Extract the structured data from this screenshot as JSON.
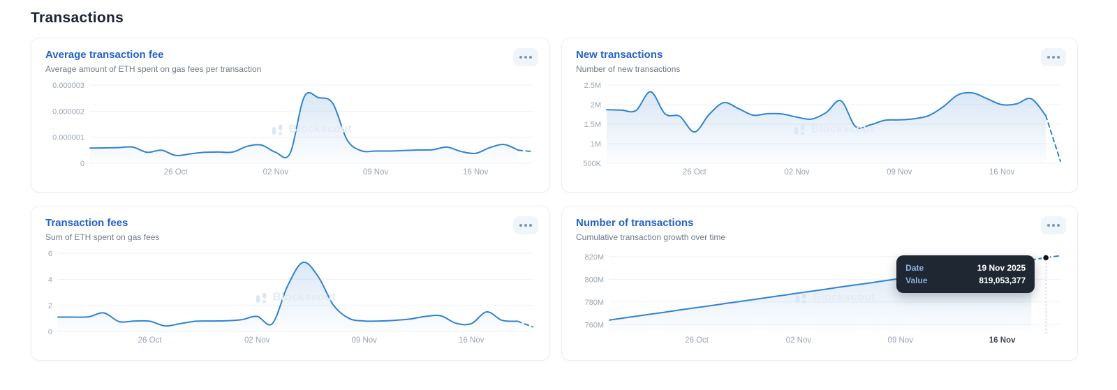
{
  "page": {
    "title": "Transactions"
  },
  "watermark": {
    "text": "Blockscout"
  },
  "colors": {
    "accent": "#2463c8",
    "line": "#2f82d0",
    "fill": "#93bbe5",
    "grid": "#eef1f6",
    "axis_text": "#9aa5b3",
    "axis_text_active": "#3f4a59",
    "crosshair": "#b6c6da",
    "marker": "#111418",
    "tooltip_bg": "#1f2733",
    "watermark_color": "#e4ebf4",
    "heading": "#1b2434"
  },
  "chart_data": [
    {
      "type": "area",
      "title": "Average transaction fee",
      "subtitle": "Average amount of ETH spent on gas fees per transaction",
      "unit": "ETH",
      "values": [
        5.8e-07,
        5.9e-07,
        6e-07,
        6.2e-07,
        4.2e-07,
        5e-07,
        3e-07,
        3.6e-07,
        4.2e-07,
        4.3e-07,
        4.3e-07,
        6.5e-07,
        7e-07,
        4.2e-07,
        3.7e-07,
        2.55e-06,
        2.52e-06,
        2.3e-06,
        9e-07,
        4.8e-07,
        4.7e-07,
        4.7e-07,
        4.9e-07,
        5.1e-07,
        5.2e-07,
        6.2e-07,
        4.5e-07,
        3.8e-07,
        6e-07,
        7.2e-07,
        5e-07,
        4.5e-07
      ],
      "dash_from": 30,
      "ymin": 0,
      "ymax": 3e-06,
      "yticks": [
        {
          "label": "0.000003",
          "v": 3e-06
        },
        {
          "label": "0.000002",
          "v": 2e-06
        },
        {
          "label": "0.000001",
          "v": 1e-06
        },
        {
          "label": "0",
          "v": 0
        }
      ],
      "xticks": [
        {
          "label": "26 Oct",
          "i": 6
        },
        {
          "label": "02 Nov",
          "i": 13
        },
        {
          "label": "09 Nov",
          "i": 20
        },
        {
          "label": "16 Nov",
          "i": 27
        }
      ],
      "ylabel_width": 64
    },
    {
      "type": "area",
      "title": "New transactions",
      "subtitle": "Number of new transactions",
      "unit": "transactions (millions)",
      "values": [
        1.87,
        1.86,
        1.85,
        2.33,
        1.76,
        1.7,
        1.3,
        1.75,
        2.05,
        1.9,
        1.73,
        1.77,
        1.76,
        1.68,
        1.63,
        1.8,
        2.1,
        1.44,
        1.48,
        1.6,
        1.61,
        1.64,
        1.72,
        1.95,
        2.25,
        2.3,
        2.15,
        2.0,
        2.02,
        2.15,
        1.72,
        0.55
      ],
      "dash_from": 30,
      "ymin": 0.5,
      "ymax": 2.5,
      "yticks": [
        {
          "label": "2.5M",
          "v": 2.5
        },
        {
          "label": "2M",
          "v": 2
        },
        {
          "label": "1.5M",
          "v": 1.5
        },
        {
          "label": "1M",
          "v": 1
        },
        {
          "label": "500K",
          "v": 0.5
        }
      ],
      "xticks": [
        {
          "label": "26 Oct",
          "i": 6
        },
        {
          "label": "02 Nov",
          "i": 13
        },
        {
          "label": "09 Nov",
          "i": 20
        },
        {
          "label": "16 Nov",
          "i": 27
        }
      ],
      "ylabel_width": 44
    },
    {
      "type": "area",
      "title": "Transaction fees",
      "subtitle": "Sum of ETH spent on gas fees",
      "unit": "ETH",
      "values": [
        1.1,
        1.1,
        1.12,
        1.42,
        0.75,
        0.8,
        0.78,
        0.42,
        0.6,
        0.78,
        0.8,
        0.82,
        0.9,
        1.15,
        0.6,
        3.5,
        5.3,
        4.2,
        2.0,
        1.0,
        0.8,
        0.8,
        0.85,
        0.95,
        1.15,
        1.2,
        0.62,
        0.6,
        1.5,
        0.85,
        0.78,
        0.35
      ],
      "dash_from": 30,
      "ymin": 0,
      "ymax": 6,
      "yticks": [
        {
          "label": "6",
          "v": 6
        },
        {
          "label": "4",
          "v": 4
        },
        {
          "label": "2",
          "v": 2
        },
        {
          "label": "0",
          "v": 0
        }
      ],
      "xticks": [
        {
          "label": "26 Oct",
          "i": 6
        },
        {
          "label": "02 Nov",
          "i": 13
        },
        {
          "label": "09 Nov",
          "i": 20
        },
        {
          "label": "16 Nov",
          "i": 27
        }
      ],
      "ylabel_width": 18
    },
    {
      "type": "area",
      "title": "Number of transactions",
      "subtitle": "Cumulative transaction growth over time",
      "unit": "transactions (millions)",
      "values": [
        764,
        765.8,
        767.7,
        769.5,
        771.3,
        773.2,
        775,
        776.8,
        778.7,
        780.5,
        782.3,
        784.2,
        786,
        787.9,
        789.7,
        791.5,
        793.4,
        795.2,
        797,
        798.9,
        800.7,
        802.5,
        804.4,
        806.2,
        808,
        809.9,
        811.7,
        813.5,
        815.4,
        817.2,
        819.05,
        820.9
      ],
      "dash_from": 29,
      "marker_index": 30,
      "active_xtick": "16 Nov",
      "ymin": 754,
      "ymax": 823,
      "yticks": [
        {
          "label": "820M",
          "v": 820
        },
        {
          "label": "800M",
          "v": 800
        },
        {
          "label": "780M",
          "v": 780
        },
        {
          "label": "760M",
          "v": 760
        }
      ],
      "xticks": [
        {
          "label": "26 Oct",
          "i": 6
        },
        {
          "label": "02 Nov",
          "i": 13
        },
        {
          "label": "09 Nov",
          "i": 20
        },
        {
          "label": "16 Nov",
          "i": 27
        }
      ],
      "ylabel_width": 48,
      "tooltip": {
        "rows": [
          {
            "label": "Date",
            "value": "19 Nov 2025"
          },
          {
            "label": "Value",
            "value": "819,053,377"
          }
        ]
      }
    }
  ]
}
